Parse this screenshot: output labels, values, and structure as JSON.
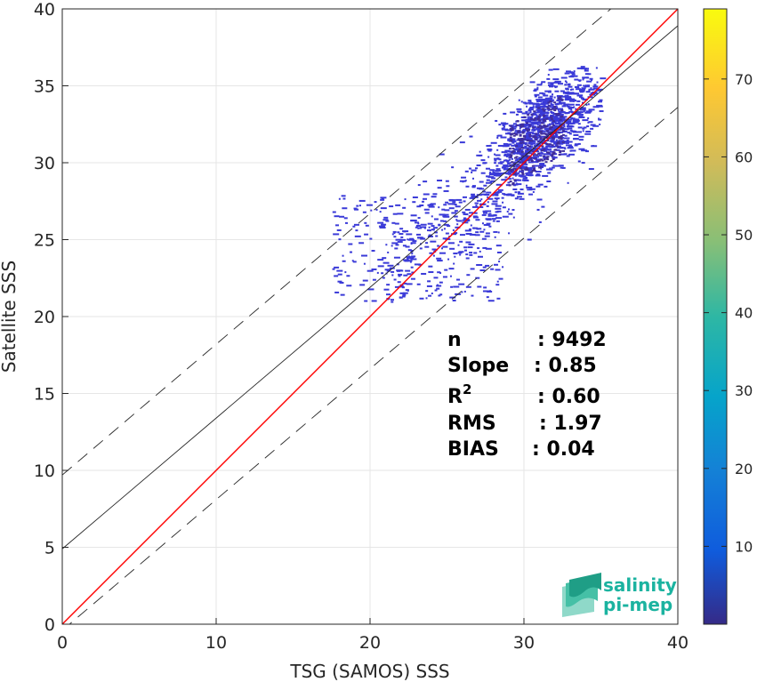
{
  "chart_data": {
    "type": "scatter",
    "xlabel": "TSG (SAMOS) SSS",
    "ylabel": "Satellite SSS",
    "xlim": [
      0,
      40
    ],
    "ylim": [
      0,
      40
    ],
    "xticks": [
      0,
      10,
      20,
      30,
      40
    ],
    "yticks": [
      0,
      5,
      10,
      15,
      20,
      25,
      30,
      35,
      40
    ],
    "grid": true,
    "colorbar": {
      "colormap": "parula",
      "range": [
        0,
        79
      ],
      "ticks": [
        10,
        20,
        30,
        40,
        50,
        60,
        70
      ]
    },
    "lines": [
      {
        "name": "identity",
        "color": "#ff0000",
        "slope": 1.0,
        "intercept": 0.0,
        "style": "solid"
      },
      {
        "name": "regression",
        "color": "#262626",
        "slope": 0.85,
        "intercept": 4.9,
        "style": "solid"
      },
      {
        "name": "upper-bound",
        "color": "#262626",
        "slope": 0.85,
        "intercept": 9.7,
        "style": "dashed"
      },
      {
        "name": "lower-bound",
        "color": "#262626",
        "slope": 0.85,
        "intercept": -0.4,
        "style": "dashed"
      }
    ],
    "density_region": {
      "x_range": [
        17.5,
        35
      ],
      "y_range": [
        21,
        36.3
      ],
      "peak": [
        31,
        30.5
      ],
      "dominant_count_color": "#3a3ad8"
    },
    "stats": [
      {
        "label": "n",
        "value": ": 9492"
      },
      {
        "label": "Slope",
        "value": ": 0.85"
      },
      {
        "label": "R",
        "sup": "2",
        "value": ": 0.60"
      },
      {
        "label": "RMS",
        "value": ": 1.97"
      },
      {
        "label": "BIAS",
        "value": ": 0.04"
      }
    ]
  },
  "logo": {
    "line1": "salinity",
    "line2": "pi-mep"
  }
}
